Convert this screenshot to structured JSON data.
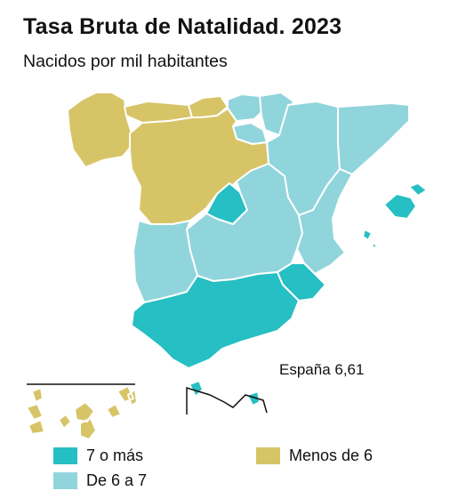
{
  "header": {
    "title": "Tasa Bruta de Natalidad. 2023",
    "subtitle": "Nacidos por mil habitantes"
  },
  "national_figure": "España 6,61",
  "colors": {
    "high": "#26bfc3",
    "mid": "#91d5dc",
    "low": "#d7c467",
    "border": "#ffffff",
    "inset_line": "#111111"
  },
  "legend": [
    {
      "label": "7 o más",
      "color_key": "high"
    },
    {
      "label": "De 6 a 7",
      "color_key": "mid"
    },
    {
      "label": "Menos de 6",
      "color_key": "low"
    }
  ],
  "regions": [
    {
      "name": "Galicia",
      "category": "low"
    },
    {
      "name": "Asturias",
      "category": "low"
    },
    {
      "name": "Cantabria",
      "category": "low"
    },
    {
      "name": "País Vasco",
      "category": "mid"
    },
    {
      "name": "Navarra",
      "category": "mid"
    },
    {
      "name": "La Rioja",
      "category": "mid"
    },
    {
      "name": "Aragón",
      "category": "mid"
    },
    {
      "name": "Cataluña",
      "category": "mid"
    },
    {
      "name": "Castilla y León",
      "category": "low"
    },
    {
      "name": "Madrid",
      "category": "high"
    },
    {
      "name": "Castilla-La Mancha",
      "category": "mid"
    },
    {
      "name": "Comunidad Valenciana",
      "category": "mid"
    },
    {
      "name": "Illes Balears",
      "category": "high"
    },
    {
      "name": "Extremadura",
      "category": "mid"
    },
    {
      "name": "Andalucía",
      "category": "high"
    },
    {
      "name": "Región de Murcia",
      "category": "high"
    },
    {
      "name": "Canarias",
      "category": "low"
    },
    {
      "name": "Ceuta",
      "category": "high"
    },
    {
      "name": "Melilla",
      "category": "high"
    }
  ]
}
